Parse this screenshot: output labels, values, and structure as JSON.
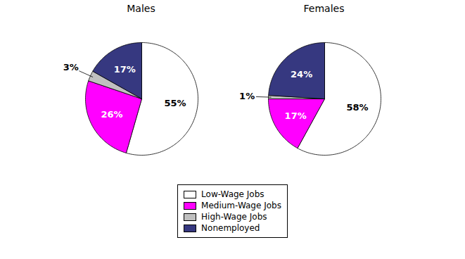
{
  "chart_data": [
    {
      "type": "pie",
      "title": "Males",
      "categories": [
        "Low-Wage Jobs",
        "Medium-Wage Jobs",
        "High-Wage Jobs",
        "Nonemployed"
      ],
      "values": [
        55,
        26,
        3,
        17
      ],
      "value_labels": [
        "55%",
        "26%",
        "3%",
        "17%"
      ],
      "colors": [
        "#ffffff",
        "#ff00ff",
        "#c0c0c0",
        "#363880"
      ],
      "data_labels": true,
      "legend": "bottom"
    },
    {
      "type": "pie",
      "title": "Females",
      "categories": [
        "Low-Wage Jobs",
        "Medium-Wage Jobs",
        "High-Wage Jobs",
        "Nonemployed"
      ],
      "values": [
        58,
        17,
        1,
        24
      ],
      "value_labels": [
        "58%",
        "17%",
        "1%",
        "24%"
      ],
      "colors": [
        "#ffffff",
        "#ff00ff",
        "#c0c0c0",
        "#363880"
      ],
      "data_labels": true,
      "legend": "bottom"
    }
  ]
}
